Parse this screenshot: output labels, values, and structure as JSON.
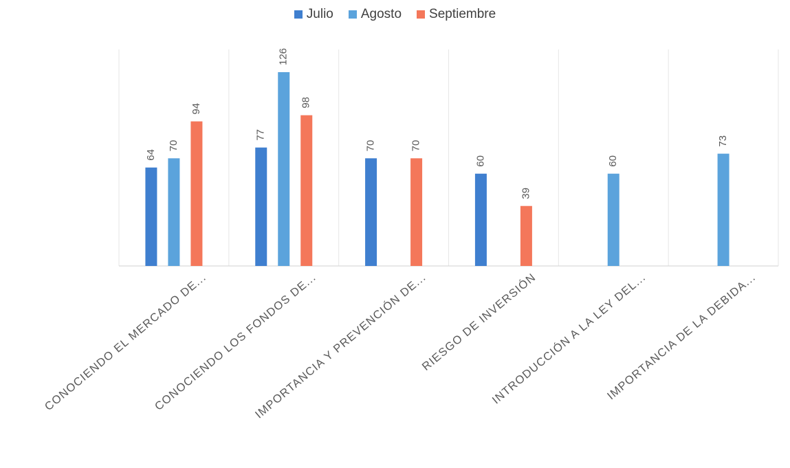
{
  "chart_data": {
    "type": "bar",
    "categories": [
      "CONOCIENDO EL MERCADO DE...",
      "CONOCIENDO LOS FONDOS DE...",
      "IMPORTANCIA Y PREVENCIÓN DE...",
      "RIESGO DE INVERSIÓN",
      "INTRODUCCIÓN A LA LEY DEL...",
      "IMPORTANCIA DE LA DEBIDA..."
    ],
    "series": [
      {
        "name": "Julio",
        "color": "#3f7fcf",
        "values": [
          64,
          77,
          70,
          60,
          null,
          null
        ]
      },
      {
        "name": "Agosto",
        "color": "#5ba3dc",
        "values": [
          70,
          126,
          null,
          null,
          60,
          73
        ]
      },
      {
        "name": "Septiembre",
        "color": "#f4775a",
        "values": [
          94,
          98,
          70,
          39,
          null,
          null
        ]
      }
    ],
    "ylim": [
      0,
      140
    ],
    "grid": "vertical-category-lines",
    "legend_position": "top",
    "data_labels": true
  }
}
